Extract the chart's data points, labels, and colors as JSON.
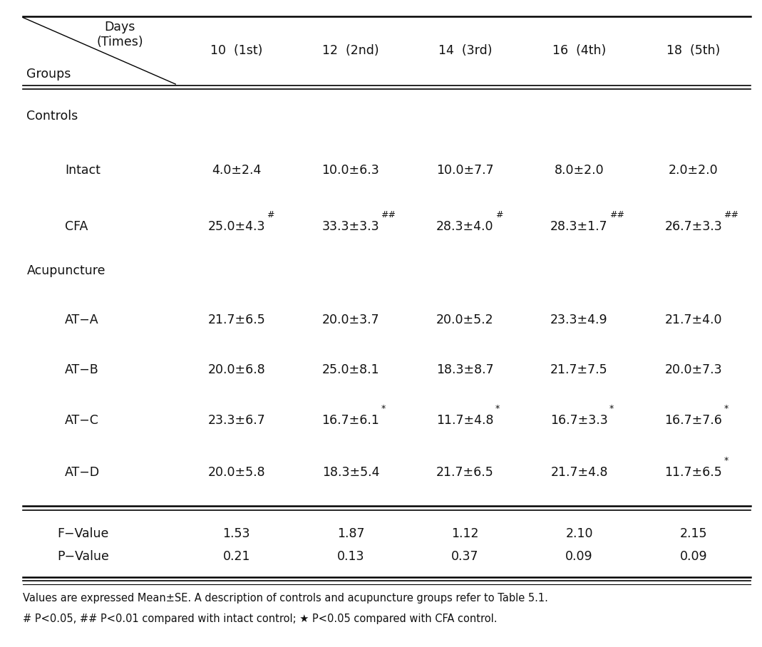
{
  "header_cols": [
    "10  (1st)",
    "12  (2nd)",
    "14  (3rd)",
    "16  (4th)",
    "18  (5th)"
  ],
  "diagonal_top": "Days\n(Times)",
  "diagonal_bottom": "Groups",
  "rows": [
    {
      "label": "Controls",
      "indent": false,
      "values": [
        "",
        "",
        "",
        "",
        ""
      ]
    },
    {
      "label": "Intact",
      "indent": true,
      "values": [
        "4.0±2.4",
        "10.0±6.3",
        "10.0±7.7",
        "8.0±2.0",
        "2.0±2.0"
      ]
    },
    {
      "label": "CFA",
      "indent": true,
      "values": [
        "25.0±4.3|#|",
        "33.3±3.3|##|",
        "28.3±4.0|#|",
        "28.3±1.7|##|",
        "26.7±3.3|##|"
      ]
    },
    {
      "label": "Acupuncture",
      "indent": false,
      "values": [
        "",
        "",
        "",
        "",
        ""
      ]
    },
    {
      "label": "AT−A",
      "indent": true,
      "values": [
        "21.7±6.5",
        "20.0±3.7",
        "20.0±5.2",
        "23.3±4.9",
        "21.7±4.0"
      ]
    },
    {
      "label": "AT−B",
      "indent": true,
      "values": [
        "20.0±6.8",
        "25.0±8.1",
        "18.3±8.7",
        "21.7±7.5",
        "20.0±7.3"
      ]
    },
    {
      "label": "AT−C",
      "indent": true,
      "values": [
        "23.3±6.7",
        "16.7±6.1|*|",
        "11.7±4.8|*|",
        "16.7±3.3|*|",
        "16.7±7.6|*|"
      ]
    },
    {
      "label": "AT−D",
      "indent": true,
      "values": [
        "20.0±5.8",
        "18.3±5.4",
        "21.7±6.5",
        "21.7±4.8",
        "11.7±6.5|*|"
      ]
    }
  ],
  "footer": [
    {
      "label": "F−Value",
      "values": [
        "1.53",
        "1.87",
        "1.12",
        "2.10",
        "2.15"
      ]
    },
    {
      "label": "P−Value",
      "values": [
        "0.21",
        "0.13",
        "0.37",
        "0.09",
        "0.09"
      ]
    }
  ],
  "footnote_line1": "Values are expressed Mean±SE. A description of controls and acupuncture groups refer to Table 5.1.",
  "footnote_line2": "# P<0.05, ## P<0.01 compared with intact control; ★ P<0.05 compared with CFA control.",
  "bg_color": "#ffffff",
  "text_color": "#111111",
  "font_size": 12.5,
  "small_font_size": 9.0,
  "footnote_font_size": 10.5
}
